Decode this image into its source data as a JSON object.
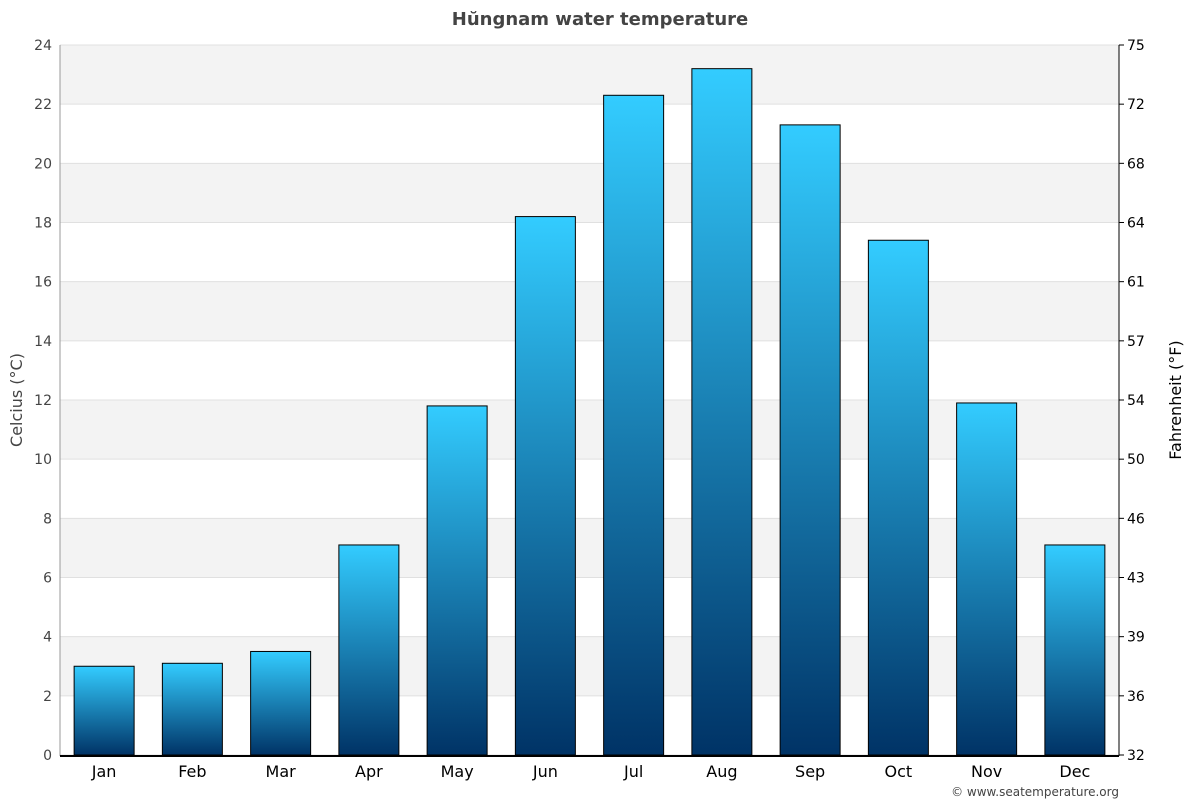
{
  "chart_data": {
    "type": "bar",
    "title": "Hŭngnam water temperature",
    "xlabel": "",
    "ylabel": "Celcius (°C)",
    "ylabel_right": "Fahrenheit (°F)",
    "categories": [
      "Jan",
      "Feb",
      "Mar",
      "Apr",
      "May",
      "Jun",
      "Jul",
      "Aug",
      "Sep",
      "Oct",
      "Nov",
      "Dec"
    ],
    "values": [
      3.0,
      3.1,
      3.5,
      7.1,
      11.8,
      18.2,
      22.3,
      23.2,
      21.3,
      17.4,
      11.9,
      7.1
    ],
    "ylim": [
      0,
      24
    ],
    "yticks": [
      0,
      2,
      4,
      6,
      8,
      10,
      12,
      14,
      16,
      18,
      20,
      22,
      24
    ],
    "yticks_right": [
      32,
      36,
      39,
      43,
      46,
      50,
      54,
      57,
      61,
      64,
      68,
      72,
      75
    ],
    "grid": true,
    "colors": {
      "bar_top": "#33ccff",
      "bar_bottom": "#003366",
      "band": "#f3f3f3"
    }
  },
  "footer": {
    "credit": "© www.seatemperature.org"
  }
}
